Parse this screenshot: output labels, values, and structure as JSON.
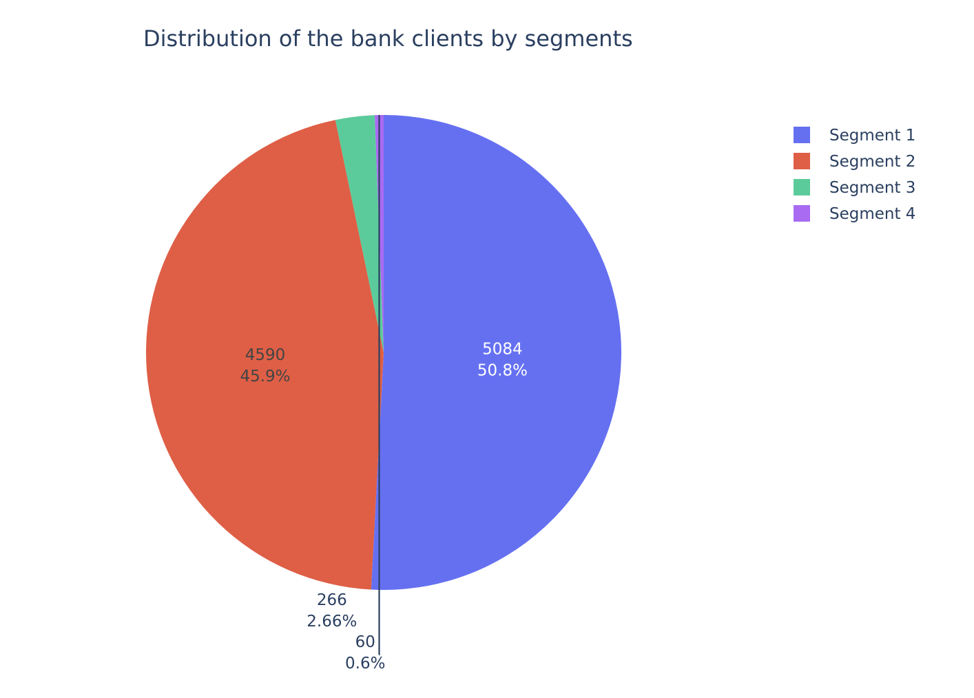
{
  "chart_data": {
    "type": "pie",
    "title": "Distribution of the bank clients by segments",
    "categories": [
      "Segment 1",
      "Segment 2",
      "Segment 3",
      "Segment 4"
    ],
    "values": [
      5084,
      4590,
      266,
      60
    ],
    "percent_labels": [
      "50.8%",
      "45.9%",
      "2.66%",
      "0.6%"
    ],
    "colors": [
      "#636efa",
      "#EF553B",
      "#00cc96",
      "#ab63fa"
    ],
    "slice_colors": [
      "#6570f1",
      "#de5f46",
      "#5ccb9b",
      "#a96bf2"
    ],
    "inside_text_colors": [
      "#ffffff",
      "#444444"
    ],
    "outside_text_color": "#2a3f5f",
    "label_positions": [
      "inside",
      "inside",
      "outside",
      "outside"
    ],
    "direction": "clockwise",
    "start": "top",
    "sort": "descending",
    "legend": {
      "position": "top-right",
      "entries": [
        "Segment 1",
        "Segment 2",
        "Segment 3",
        "Segment 4"
      ]
    }
  }
}
